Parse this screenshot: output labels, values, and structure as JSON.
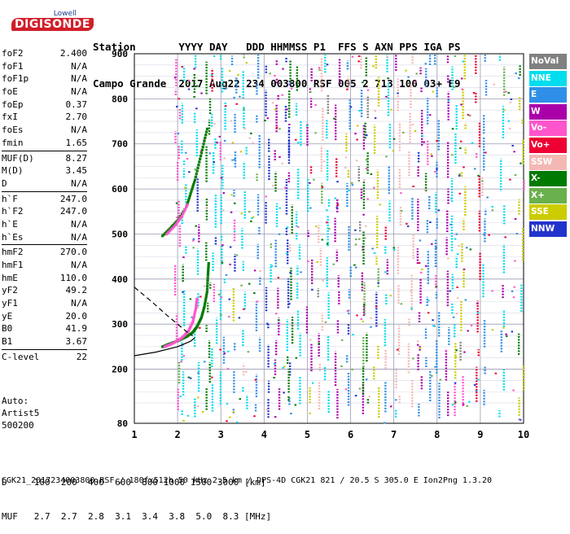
{
  "logo": {
    "line1": "Lowell",
    "line2": "DIGISONDE"
  },
  "header": {
    "labels": "Station       YYYY DAY   DDD HHMMSS P1  FFS S AXN PPS IGA PS",
    "values": "Campo Grande  2017 Aug22 234 003800 RSF 005 2 713 100 03+ E9"
  },
  "params": {
    "group1": [
      {
        "name": "foF2",
        "value": "2.400"
      },
      {
        "name": "foF1",
        "value": "N/A"
      },
      {
        "name": "foF1p",
        "value": "N/A"
      },
      {
        "name": "foE",
        "value": "N/A"
      },
      {
        "name": "foEp",
        "value": "0.37"
      },
      {
        "name": "fxI",
        "value": "2.70"
      },
      {
        "name": "foEs",
        "value": "N/A"
      },
      {
        "name": "fmin",
        "value": "1.65"
      }
    ],
    "group2": [
      {
        "name": "MUF(D)",
        "value": "8.27"
      },
      {
        "name": "M(D)",
        "value": "3.45"
      },
      {
        "name": "D",
        "value": "N/A"
      }
    ],
    "group3": [
      {
        "name": "h`F",
        "value": "247.0"
      },
      {
        "name": "h`F2",
        "value": "247.0"
      },
      {
        "name": "h`E",
        "value": "N/A"
      },
      {
        "name": "h`Es",
        "value": "N/A"
      }
    ],
    "group4": [
      {
        "name": "hmF2",
        "value": "270.0"
      },
      {
        "name": "hmF1",
        "value": "N/A"
      },
      {
        "name": "hmE",
        "value": "110.0"
      },
      {
        "name": "yF2",
        "value": "49.2"
      },
      {
        "name": "yF1",
        "value": "N/A"
      },
      {
        "name": "yE",
        "value": "20.0"
      },
      {
        "name": "B0",
        "value": "41.9"
      },
      {
        "name": "B1",
        "value": "3.67"
      }
    ],
    "group5": [
      {
        "name": "C-level",
        "value": "22"
      }
    ]
  },
  "auto": {
    "line1": "Auto:",
    "line2": "Artist5",
    "line3": "500200"
  },
  "legend": [
    {
      "label": "NoVal",
      "bg": "#808080",
      "fg": "#ffffff"
    },
    {
      "label": "NNE",
      "bg": "#00ddee",
      "fg": "#ffffff"
    },
    {
      "label": "E",
      "bg": "#2f8fe8",
      "fg": "#ffffff"
    },
    {
      "label": "W",
      "bg": "#aa00aa",
      "fg": "#ffffff"
    },
    {
      "label": "Vo-",
      "bg": "#ff55cc",
      "fg": "#ffffff"
    },
    {
      "label": "Vo+",
      "bg": "#ee0033",
      "fg": "#ffffff"
    },
    {
      "label": "SSW",
      "bg": "#f4b8b4",
      "fg": "#ffffff"
    },
    {
      "label": "X-",
      "bg": "#007a00",
      "fg": "#ffffff"
    },
    {
      "label": "X+",
      "bg": "#6ab04c",
      "fg": "#ffffff"
    },
    {
      "label": "SSE",
      "bg": "#cccc00",
      "fg": "#ffffff"
    },
    {
      "label": "NNW",
      "bg": "#2233cc",
      "fg": "#ffffff"
    }
  ],
  "bottom": {
    "d_row": "D     100  200  400  600  800 1000 1500 3000 [km]",
    "muf_row": "MUF   2.7  2.7  2.8  3.1  3.4  3.8  5.0  8.3 [MHz]"
  },
  "footer": "CGK21_2017234003800.RSF / 180fx512h 50 kHz 2.5 km / DPS-4D CGK21 821 / 20.5 S 305.0 E Ion2Png 1.3.20",
  "chart_data": {
    "type": "scatter",
    "title": "",
    "xlabel": "",
    "ylabel": "",
    "xlim": [
      1,
      10
    ],
    "ylim": [
      80,
      900
    ],
    "xticks": [
      1,
      2,
      3,
      4,
      5,
      6,
      7,
      8,
      9,
      10
    ],
    "yticks": [
      80,
      200,
      300,
      400,
      500,
      600,
      700,
      800,
      900
    ],
    "grid": true,
    "legend_position": "right",
    "series": [
      {
        "color": "#007a00",
        "points": [
          [
            1.65,
            250
          ],
          [
            1.8,
            256
          ],
          [
            2.0,
            263
          ],
          [
            2.2,
            272
          ],
          [
            2.35,
            282
          ],
          [
            2.45,
            295
          ],
          [
            2.55,
            315
          ],
          [
            2.62,
            340
          ],
          [
            2.68,
            372
          ],
          [
            2.7,
            410
          ],
          [
            2.72,
            440
          ]
        ]
      },
      {
        "color": "#ff55cc",
        "points": [
          [
            1.7,
            250
          ],
          [
            1.9,
            258
          ],
          [
            2.1,
            270
          ],
          [
            2.25,
            285
          ],
          [
            2.35,
            305
          ],
          [
            2.42,
            335
          ],
          [
            2.45,
            360
          ]
        ]
      },
      {
        "color": "#007a00",
        "points": [
          [
            1.65,
            496
          ],
          [
            1.85,
            515
          ],
          [
            2.0,
            530
          ],
          [
            2.2,
            560
          ],
          [
            2.3,
            590
          ],
          [
            2.4,
            620
          ],
          [
            2.5,
            660
          ],
          [
            2.6,
            700
          ],
          [
            2.7,
            740
          ]
        ]
      },
      {
        "color": "#ff55cc",
        "points": [
          [
            1.75,
            500
          ],
          [
            1.95,
            520
          ],
          [
            2.1,
            540
          ],
          [
            2.25,
            570
          ]
        ]
      }
    ],
    "profile": {
      "solid": [
        [
          1.0,
          230
        ],
        [
          1.5,
          238
        ],
        [
          2.0,
          250
        ],
        [
          2.3,
          262
        ],
        [
          2.4,
          270
        ]
      ],
      "dashed": [
        [
          1.0,
          382
        ],
        [
          1.4,
          350
        ],
        [
          1.75,
          320
        ],
        [
          2.0,
          300
        ],
        [
          2.2,
          284
        ],
        [
          2.35,
          274
        ]
      ]
    }
  }
}
